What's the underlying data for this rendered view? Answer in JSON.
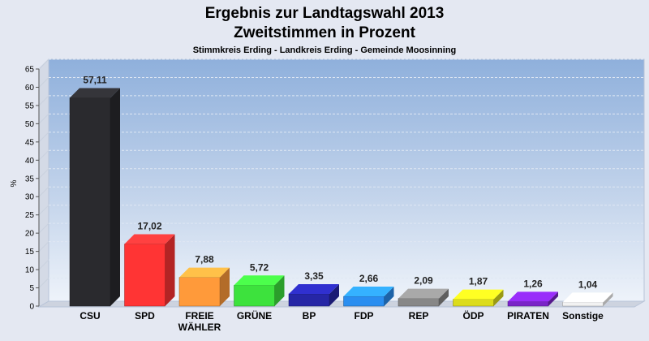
{
  "chart_data": {
    "type": "bar",
    "title": "Ergebnis zur Landtagswahl 2013",
    "title2": "Zweitstimmen in Prozent",
    "subtitle": "Stimmkreis Erding - Landkreis Erding - Gemeinde Moosinning",
    "ylabel": "%",
    "xlabel": "",
    "ylim": [
      0,
      65
    ],
    "yticks": [
      "0",
      "5",
      "10",
      "15",
      "20",
      "25",
      "30",
      "35",
      "40",
      "45",
      "50",
      "55",
      "60",
      "65"
    ],
    "categories": [
      "CSU",
      "SPD",
      "FREIE WÄHLER",
      "GRÜNE",
      "BP",
      "FDP",
      "REP",
      "ÖDP",
      "PIRATEN",
      "Sonstige"
    ],
    "values": [
      57.11,
      17.02,
      7.88,
      5.72,
      3.35,
      2.66,
      2.09,
      1.87,
      1.26,
      1.04
    ],
    "value_labels": [
      "57,11",
      "17,02",
      "7,88",
      "5,72",
      "3,35",
      "2,66",
      "2,09",
      "1,87",
      "1,26",
      "1,04"
    ],
    "colors": [
      "#2a2a2e",
      "#ff3434",
      "#ff9a3a",
      "#3de23d",
      "#2626a6",
      "#2a8ef0",
      "#878787",
      "#dcdc1c",
      "#7a24c8",
      "#f2f2f2"
    ],
    "grid": true
  }
}
